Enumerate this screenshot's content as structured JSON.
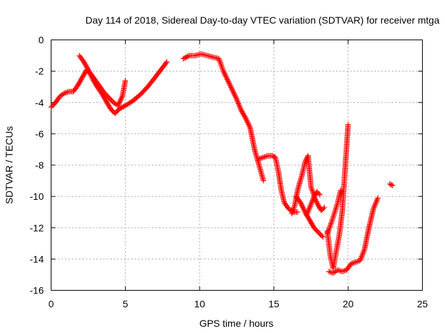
{
  "chart_data": {
    "type": "scatter",
    "title": "Day 114 of 2018, Sidereal Day-to-day VTEC variation (SDTVAR) for receiver mtga",
    "xlabel": "GPS time / hours",
    "ylabel": "SDTVAR / TECUs",
    "xlim": [
      0,
      25
    ],
    "ylim": [
      -16,
      0
    ],
    "xticks": [
      0,
      5,
      10,
      15,
      20,
      25
    ],
    "yticks": [
      0,
      -2,
      -4,
      -6,
      -8,
      -10,
      -12,
      -14,
      -16
    ],
    "xtick_labels": [
      "0",
      "5",
      "10",
      "15",
      "20",
      "25"
    ],
    "ytick_labels": [
      "0",
      "-2",
      "-4",
      "-6",
      "-8",
      "-10",
      "-12",
      "-14",
      "-16"
    ],
    "grid": true,
    "legend": "none",
    "marker": "+",
    "color": "#ff0000",
    "series": [
      {
        "x": [
          0.0,
          0.3,
          0.6,
          0.9,
          1.2,
          1.5,
          1.8,
          2.1,
          2.4,
          2.7,
          3.0,
          3.3,
          3.6,
          3.9,
          4.2,
          4.5,
          4.8,
          5.0
        ],
        "y": [
          -4.3,
          -4.0,
          -3.6,
          -3.4,
          -3.3,
          -3.3,
          -2.9,
          -2.4,
          -1.9,
          -2.2,
          -2.6,
          -3.0,
          -3.4,
          -3.7,
          -4.0,
          -4.2,
          -3.6,
          -2.6
        ]
      },
      {
        "x": [
          1.9,
          2.2,
          2.5,
          2.8,
          3.1,
          3.4,
          3.7,
          4.0,
          4.3,
          4.6
        ],
        "y": [
          -1.0,
          -1.4,
          -1.9,
          -2.5,
          -3.0,
          -3.4,
          -3.9,
          -4.4,
          -4.7,
          -4.4
        ]
      },
      {
        "x": [
          4.6,
          5.0,
          5.5,
          6.0,
          6.5,
          7.0,
          7.4,
          7.8
        ],
        "y": [
          -4.4,
          -4.2,
          -3.9,
          -3.5,
          -3.0,
          -2.4,
          -1.9,
          -1.4
        ]
      },
      {
        "x": [
          8.9,
          9.3,
          9.7,
          10.1,
          10.5,
          10.9,
          11.3,
          11.6,
          11.9,
          12.2,
          12.5,
          12.8,
          13.1,
          13.4,
          13.7,
          14.0,
          14.3
        ],
        "y": [
          -1.2,
          -1.0,
          -1.0,
          -0.9,
          -1.0,
          -1.1,
          -1.2,
          -2.0,
          -2.6,
          -3.2,
          -3.8,
          -4.5,
          -5.0,
          -5.6,
          -7.0,
          -8.0,
          -9.0
        ]
      },
      {
        "x": [
          14.0,
          14.3,
          14.6,
          14.9,
          15.1,
          15.3,
          15.5,
          15.7,
          16.0,
          16.3,
          16.6
        ],
        "y": [
          -7.6,
          -7.5,
          -7.4,
          -7.4,
          -7.5,
          -8.4,
          -9.6,
          -10.4,
          -10.8,
          -11.0,
          -11.0
        ]
      },
      {
        "x": [
          16.2,
          16.4,
          16.6,
          16.9,
          17.1,
          17.3,
          17.5,
          17.8,
          18.0,
          18.2,
          18.4
        ],
        "y": [
          -11.1,
          -10.6,
          -9.6,
          -8.6,
          -7.8,
          -7.4,
          -9.4,
          -10.2,
          -10.6,
          -10.9,
          -10.7
        ]
      },
      {
        "x": [
          16.5,
          16.8,
          17.1,
          17.4,
          17.7,
          18.0,
          18.3
        ],
        "y": [
          -10.0,
          -10.4,
          -11.0,
          -11.5,
          -12.0,
          -12.3,
          -12.6
        ]
      },
      {
        "x": [
          17.2,
          17.5,
          17.7,
          17.9,
          18.1
        ],
        "y": [
          -11.2,
          -10.5,
          -10.0,
          -9.7,
          -9.9
        ]
      },
      {
        "x": [
          18.7,
          19.0,
          19.3,
          19.6,
          19.9,
          20.2,
          20.5,
          20.8,
          21.1,
          21.4,
          21.7,
          22.0
        ],
        "y": [
          -14.8,
          -14.9,
          -14.7,
          -14.8,
          -14.7,
          -14.3,
          -14.2,
          -14.1,
          -13.4,
          -12.0,
          -10.8,
          -10.1
        ]
      },
      {
        "x": [
          18.6,
          18.8,
          19.0,
          19.2,
          19.4,
          19.6,
          19.8,
          20.0
        ],
        "y": [
          -12.2,
          -13.8,
          -14.6,
          -13.5,
          -12.5,
          -11.0,
          -8.2,
          -5.4
        ]
      },
      {
        "x": [
          18.6,
          18.9,
          19.1,
          19.3,
          19.5
        ],
        "y": [
          -12.4,
          -11.6,
          -11.0,
          -10.4,
          -9.6
        ]
      },
      {
        "x": [
          22.8,
          23.0
        ],
        "y": [
          -9.2,
          -9.3
        ]
      }
    ]
  }
}
